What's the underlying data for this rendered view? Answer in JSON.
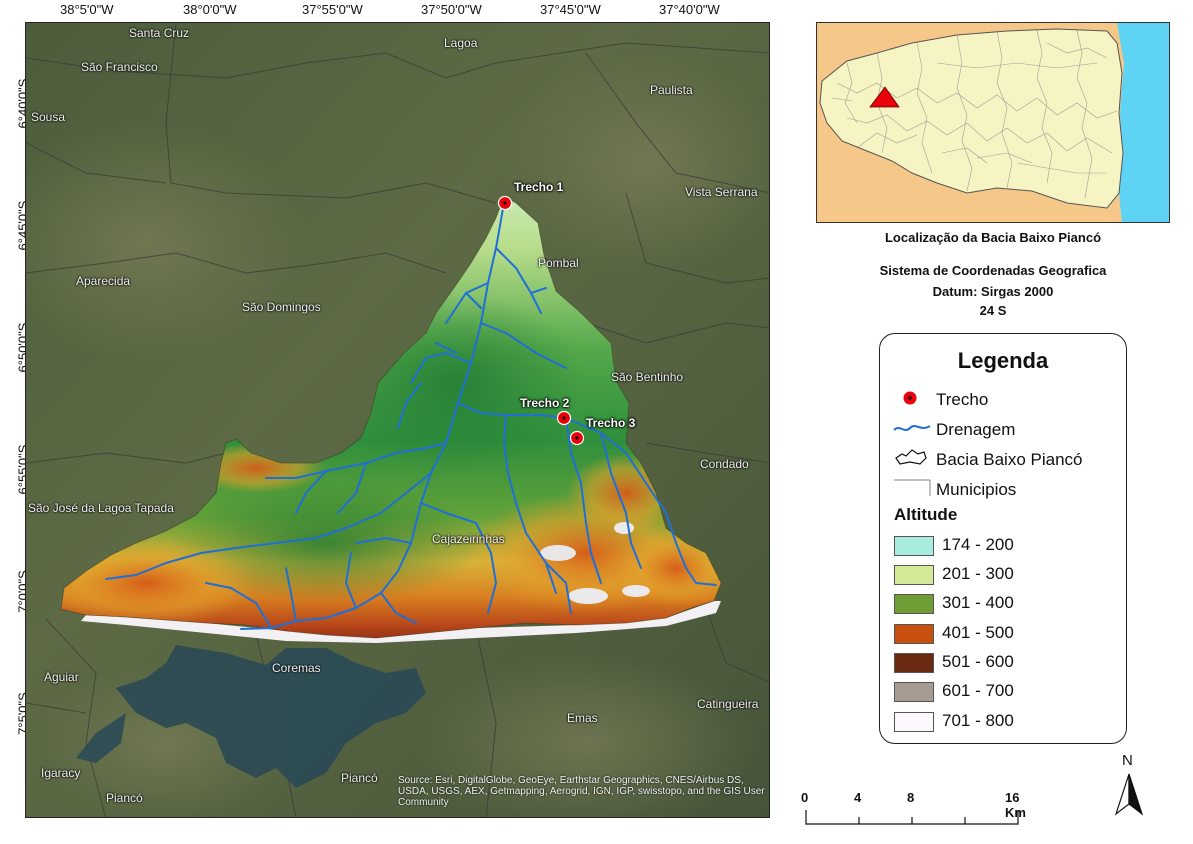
{
  "map": {
    "lon_ticks": [
      "38°5'0\"W",
      "38°0'0\"W",
      "37°55'0\"W",
      "37°50'0\"W",
      "37°45'0\"W",
      "37°40'0\"W"
    ],
    "lat_ticks": [
      "6°40'0\"S",
      "6°45'0\"S",
      "6°50'0\"S",
      "6°55'0\"S",
      "7°0'0\"S",
      "7°5'0\"S"
    ],
    "towns": [
      "Santa Cruz",
      "São Francisco",
      "Lagoa",
      "Paulista",
      "Sousa",
      "Vista Serrana",
      "Pombal",
      "Aparecida",
      "São Domingos",
      "São Bentinho",
      "Condado",
      "São José da Lagoa Tapada",
      "Cajazeirinhas",
      "Aguiar",
      "Coremas",
      "Catingueira",
      "Emas",
      "Igaracy",
      "Piancó",
      "Piancó"
    ],
    "trechos": [
      "Trecho 1",
      "Trecho 2",
      "Trecho 3"
    ],
    "credits": "Source: Esri, DigitalGlobe, GeoEye, Earthstar Geographics, CNES/Airbus DS, USDA, USGS, AEX, Getmapping, Aerogrid, IGN, IGP, swisstopo, and the GIS User Community"
  },
  "inset": {
    "caption": "Localização da Bacia Baixo Piancó",
    "colors": {
      "state": "#f7f4c4",
      "outside": "#f5c88a",
      "sea": "#5fd3f3",
      "marker": "#e8000a"
    }
  },
  "info": {
    "line1": "Sistema de Coordenadas  Geografica",
    "line2": "Datum: Sirgas 2000",
    "line3": "24 S"
  },
  "legend": {
    "title": "Legenda",
    "symbols": [
      {
        "label": "Trecho",
        "icon": "trecho-point-icon"
      },
      {
        "label": "Drenagem",
        "icon": "drainage-line-icon"
      },
      {
        "label": "Bacia Baixo Piancó",
        "icon": "basin-outline-icon"
      },
      {
        "label": "Municipios",
        "icon": "municipality-line-icon"
      }
    ],
    "altitude_title": "Altitude",
    "altitude_classes": [
      {
        "label": "174 - 200",
        "color": "#a8ece0"
      },
      {
        "label": "201 - 300",
        "color": "#d3eb96"
      },
      {
        "label": "301 - 400",
        "color": "#6e9e35"
      },
      {
        "label": "401 - 500",
        "color": "#c8500f"
      },
      {
        "label": "501 - 600",
        "color": "#6a2a12"
      },
      {
        "label": "601 - 700",
        "color": "#a79c94"
      },
      {
        "label": "701 - 800",
        "color": "#fbf9fb"
      }
    ]
  },
  "scale": {
    "labels": [
      "0",
      "4",
      "8",
      "16 Km"
    ]
  },
  "north": {
    "label": "N"
  }
}
